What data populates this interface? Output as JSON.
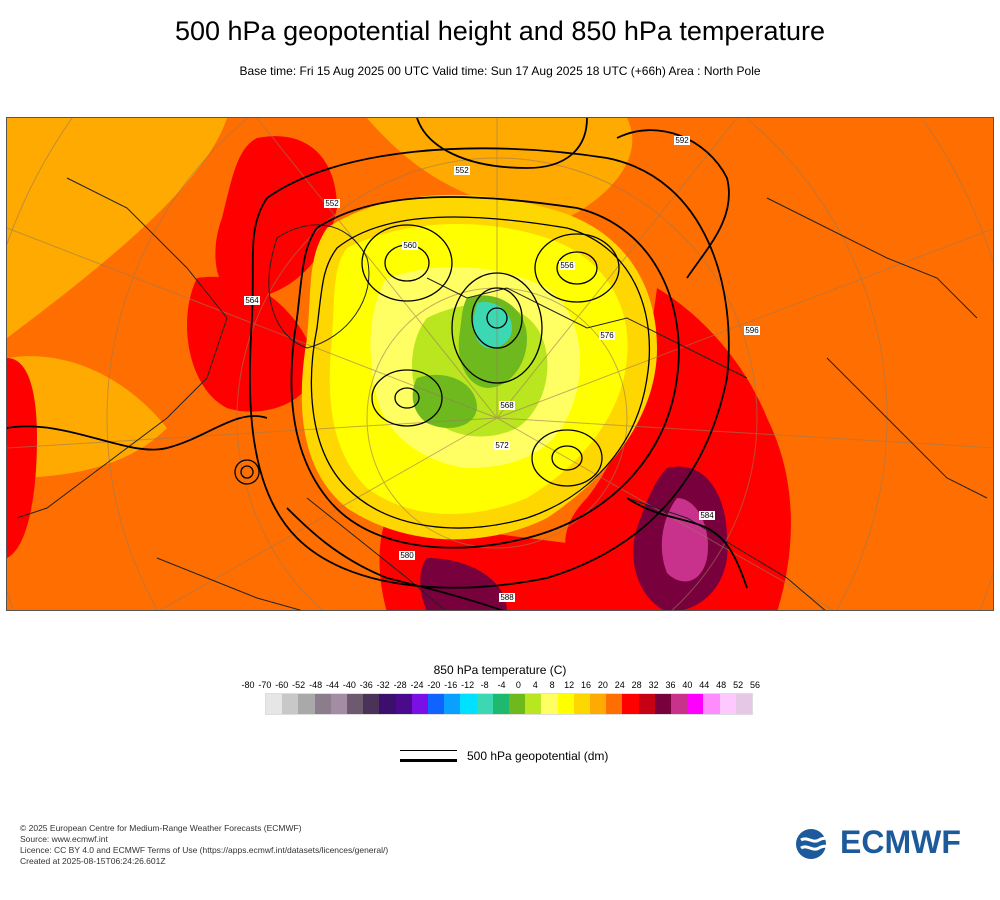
{
  "title": "500 hPa geopotential height and 850 hPa temperature",
  "subtitle": "Base time: Fri 15 Aug 2025 00 UTC Valid time: Sun 17 Aug 2025 18 UTC (+66h) Area : North Pole",
  "legend": {
    "title": "850 hPa temperature (C)",
    "ticks": [
      "-80",
      "-70",
      "-60",
      "-52",
      "-48",
      "-44",
      "-40",
      "-36",
      "-32",
      "-28",
      "-24",
      "-20",
      "-16",
      "-12",
      "-8",
      "-4",
      "0",
      "4",
      "8",
      "12",
      "16",
      "20",
      "24",
      "28",
      "32",
      "36",
      "40",
      "44",
      "48",
      "52",
      "56"
    ],
    "colors": [
      "#e6e6e6",
      "#c8c8c8",
      "#a9a9a9",
      "#8c7d8c",
      "#a58ca5",
      "#6e5a6e",
      "#4b3257",
      "#3c0f6e",
      "#4b0a8c",
      "#7a10e6",
      "#0f64ff",
      "#0aa0ff",
      "#00e0ff",
      "#3cd8b4",
      "#1eb96e",
      "#6eb91e",
      "#b9e61e",
      "#ffff64",
      "#ffff00",
      "#ffd700",
      "#ffaa00",
      "#ff6e00",
      "#ff0000",
      "#c80014",
      "#78003c",
      "#c8328c",
      "#ff00ff",
      "#ff8cff",
      "#ffc8ff",
      "#e6c8e6"
    ],
    "contour_label": "500 hPa geopotential (dm)"
  },
  "contour_labels": [
    "552",
    "552",
    "556",
    "560",
    "564",
    "568",
    "572",
    "576",
    "580",
    "584",
    "588",
    "592",
    "596"
  ],
  "footer": [
    "© 2025 European Centre for Medium-Range Weather Forecasts (ECMWF)",
    "Source: www.ecmwf.int",
    "Licence: CC BY 4.0 and ECMWF Terms of Use (https://apps.ecmwf.int/datasets/licences/general/)",
    "Created at 2025-08-15T06:24:26.601Z"
  ],
  "logo_text": "ECMWF"
}
